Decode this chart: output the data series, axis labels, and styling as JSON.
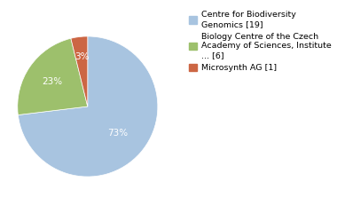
{
  "slices": [
    19,
    6,
    1
  ],
  "percentages": [
    "73%",
    "23%",
    "3%"
  ],
  "colors": [
    "#a8c4e0",
    "#9dc06c",
    "#cc6644"
  ],
  "legend_labels": [
    "Centre for Biodiversity\nGenomics [19]",
    "Biology Centre of the Czech\nAcademy of Sciences, Institute\n... [6]",
    "Microsynth AG [1]"
  ],
  "background_color": "#ffffff",
  "pct_colors": [
    "white",
    "white",
    "white"
  ],
  "pct_fontsize": 7.5,
  "legend_fontsize": 6.8
}
